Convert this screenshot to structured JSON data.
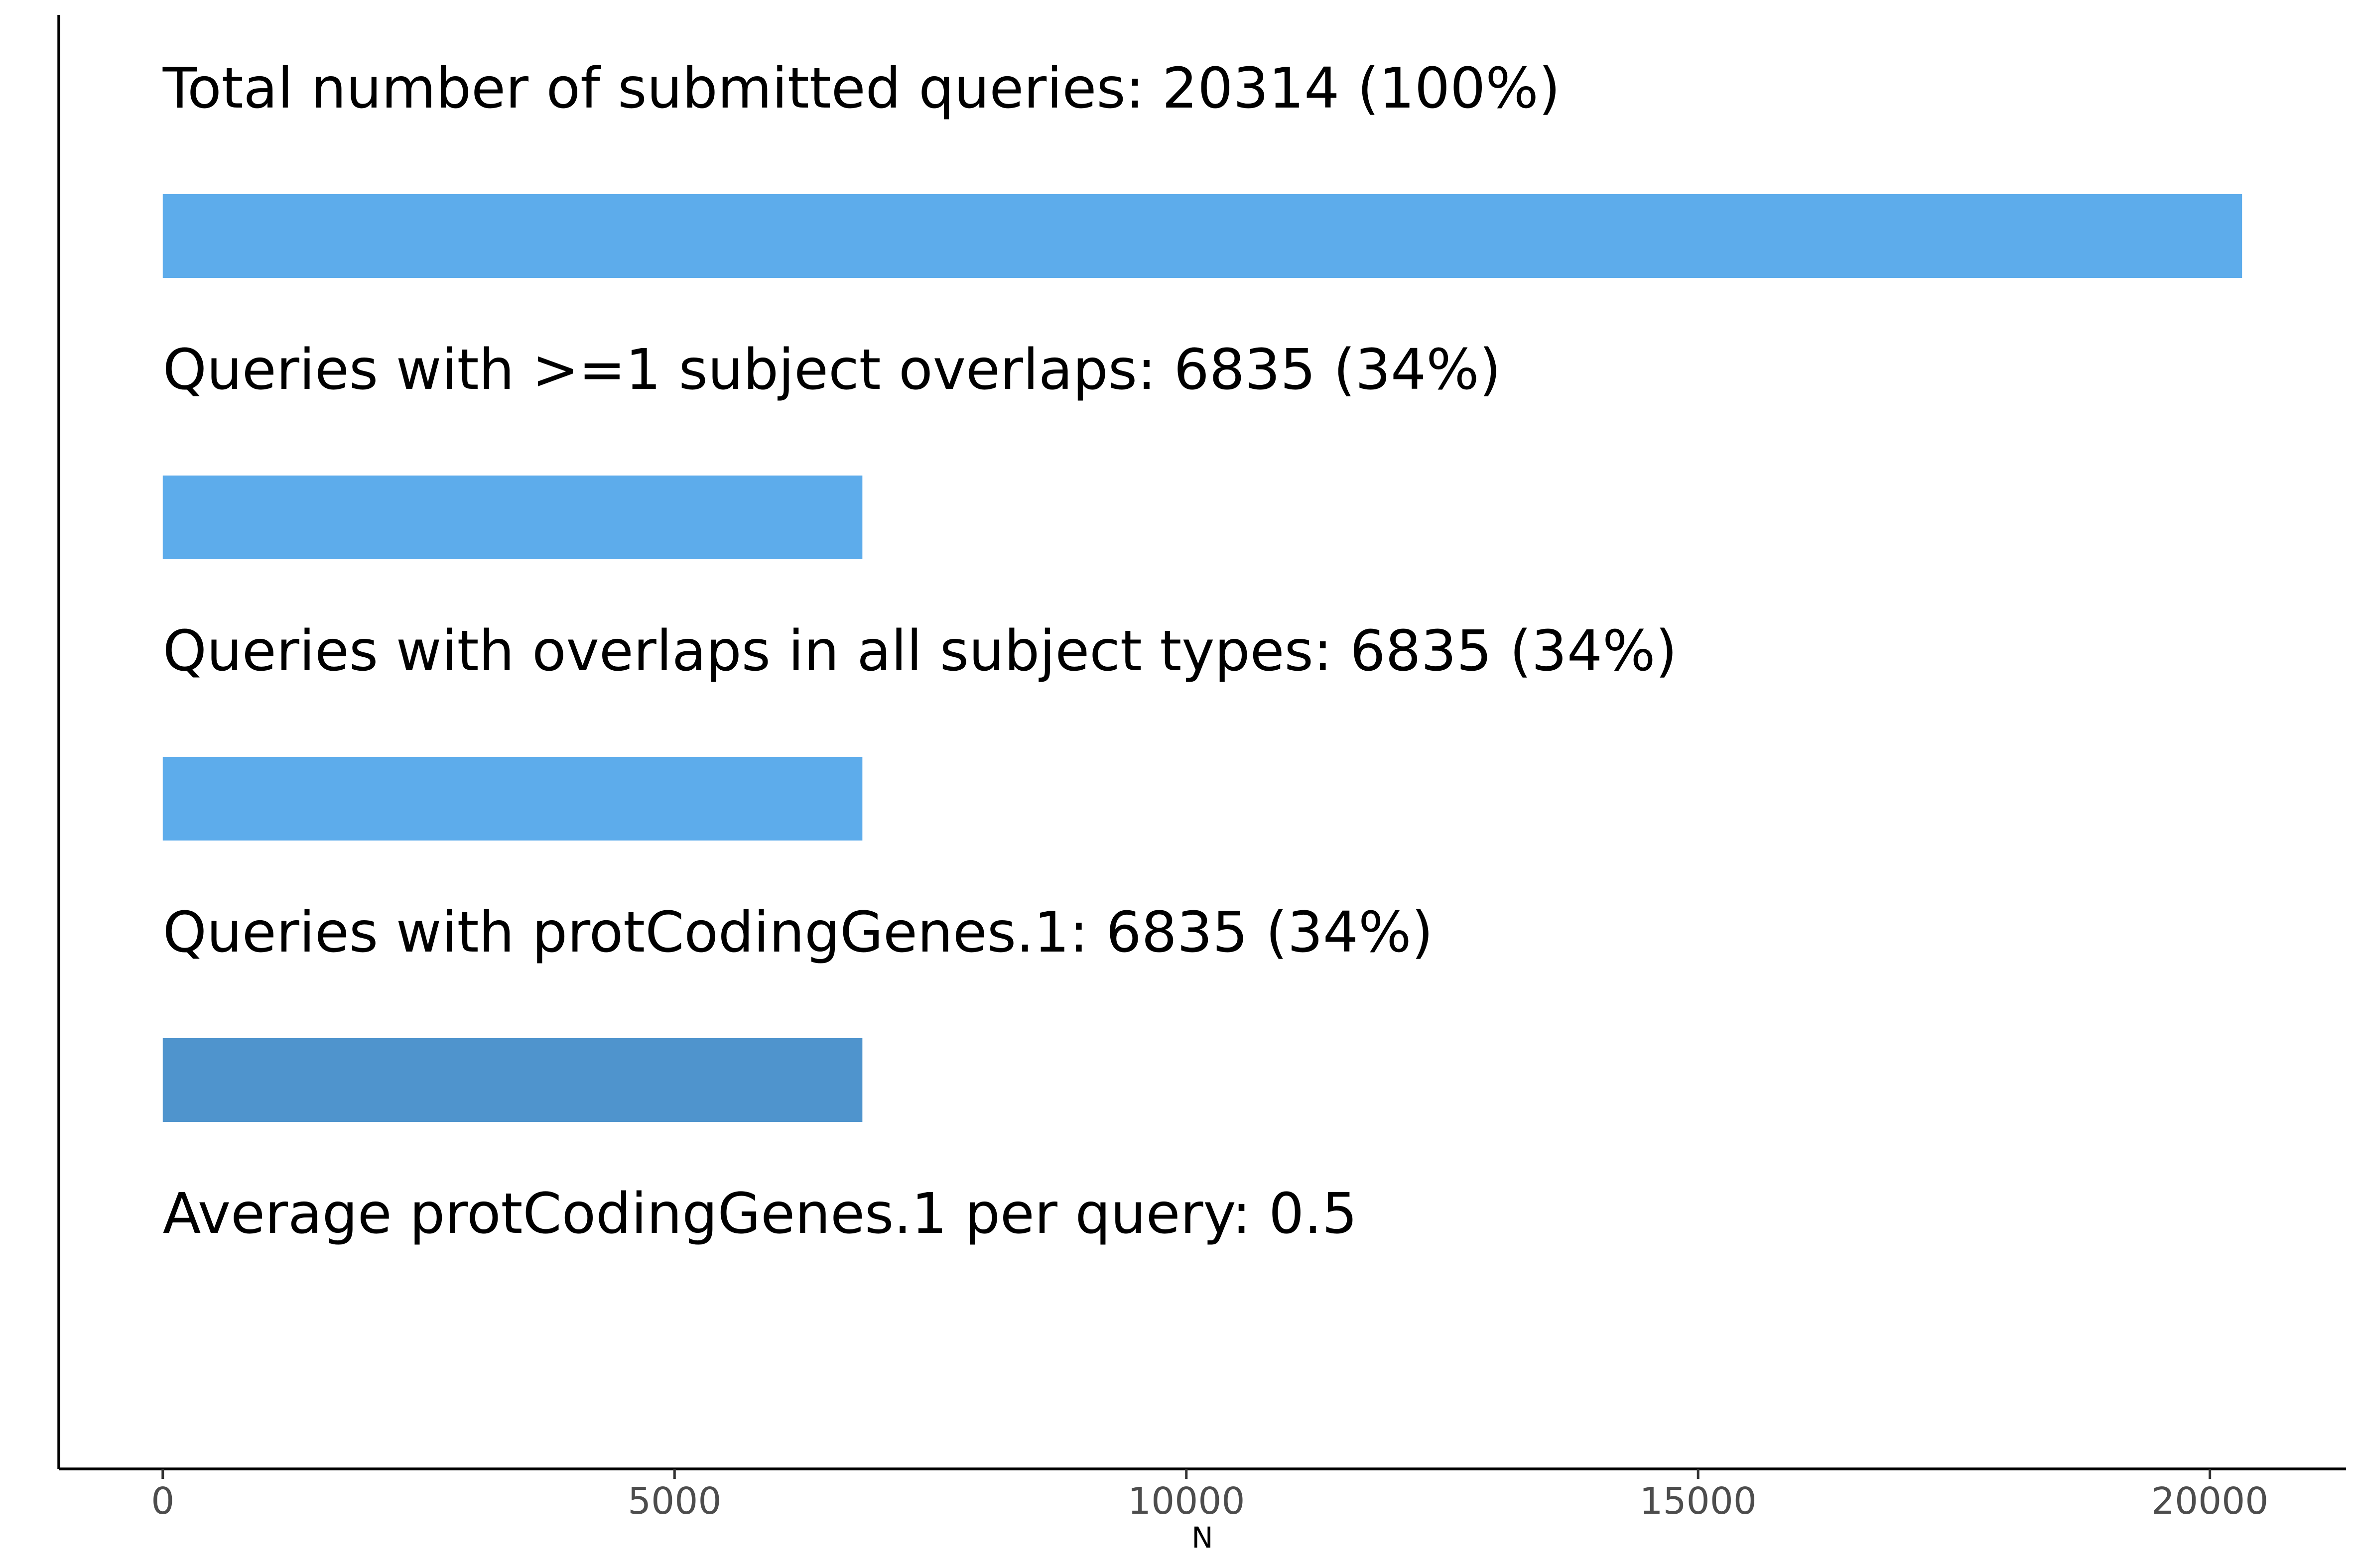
{
  "chart_data": {
    "type": "bar",
    "orientation": "horizontal",
    "bars": [
      {
        "label": "Total number of submitted queries: 20314 (100%)",
        "value": 20314,
        "color": "#5DACEB"
      },
      {
        "label": "Queries with >=1 subject overlaps: 6835 (34%)",
        "value": 6835,
        "color": "#5DACEB"
      },
      {
        "label": "Queries with overlaps in all subject types: 6835 (34%)",
        "value": 6835,
        "color": "#5DACEB"
      },
      {
        "label": "Queries with protCodingGenes.1: 6835 (34%)",
        "value": 6835,
        "color": "#4F94CD"
      },
      {
        "label": "Average protCodingGenes.1 per query: 0.5",
        "value": 0.5,
        "color": "#FFFFFF"
      }
    ],
    "xlabel": "N",
    "ylabel": "",
    "xticks": [
      0,
      5000,
      10000,
      15000,
      20000
    ],
    "xlim": [
      -1016,
      21330
    ],
    "grid": false,
    "legend": "none"
  }
}
